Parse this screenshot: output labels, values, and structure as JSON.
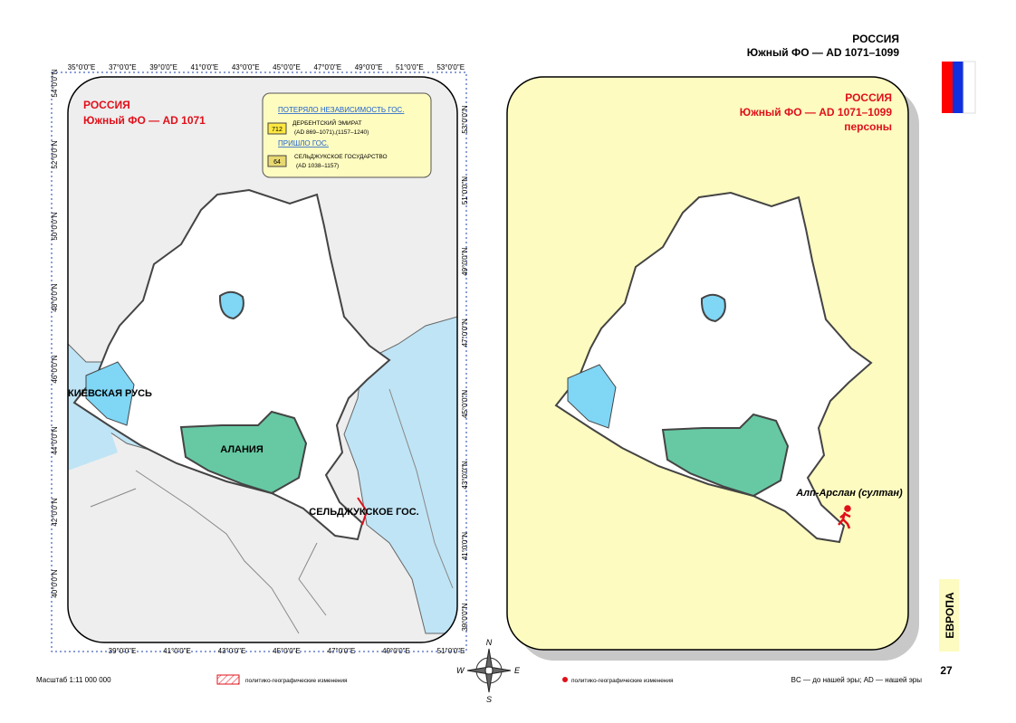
{
  "header": {
    "country": "РОССИЯ",
    "subtitle": "Южный ФО — AD 1071–1099"
  },
  "left_map": {
    "title": "РОССИЯ",
    "subtitle": "Южный ФО — AD 1071",
    "legend": {
      "lost_heading": "ПОТЕРЯЛО НЕЗАВИСИМОСТЬ ГОС.",
      "lost_badge": "712",
      "lost_name": "ДЕРБЕНТСКИЙ ЭМИРАТ",
      "lost_dates": "(AD 869–1071),(1157–1240)",
      "came_heading": "ПРИШЛО ГОС.",
      "came_badge": "64",
      "came_name": "СЕЛЬДЖУКСКОЕ ГОСУДАРСТВО",
      "came_dates": "(AD 1038–1157)"
    },
    "labels": [
      "КИЕВСКАЯ РУСЬ",
      "АЛАНИЯ",
      "СЕЛЬДЖУКСКОЕ ГОС."
    ],
    "top_ticks": [
      "35°0'0\"E",
      "37°0'0\"E",
      "39°0'0\"E",
      "41°0'0\"E",
      "43°0'0\"E",
      "45°0'0\"E",
      "47°0'0\"E",
      "49°0'0\"E",
      "51°0'0\"E",
      "53°0'0\"E"
    ],
    "bottom_ticks": [
      "39°0'0\"E",
      "41°0'0\"E",
      "43°0'0\"E",
      "45°0'0\"E",
      "47°0'0\"E",
      "49°0'0\"E",
      "51°0'0\"E"
    ],
    "left_ticks": [
      "54°0'0\"N",
      "52°0'0\"N",
      "50°0'0\"N",
      "48°0'0\"N",
      "46°0'0\"N",
      "44°0'0\"N",
      "42°0'0\"N",
      "40°0'0\"N"
    ],
    "right_ticks": [
      "53°0'0\"N",
      "51°0'0\"N",
      "49°0'0\"N",
      "47°0'0\"N",
      "45°0'0\"N",
      "43°0'0\"N",
      "41°0'0\"N",
      "39°0'0\"N"
    ]
  },
  "right_map": {
    "title": "РОССИЯ",
    "subtitle": "Южный ФО — AD 1071–1099",
    "caption": "персоны",
    "person": "Алп-Арслан (султан)"
  },
  "compass": {
    "n": "N",
    "e": "E",
    "s": "S",
    "w": "W"
  },
  "side": {
    "region": "ЕВРОПА",
    "page": "27"
  },
  "footer": {
    "scale": "Масштаб 1:11 000 000",
    "changes_hatched": "политико-географические изменения",
    "changes_dot": "политико-географические изменения",
    "note": "BC — до нашей эры; AD — нашей эры"
  }
}
